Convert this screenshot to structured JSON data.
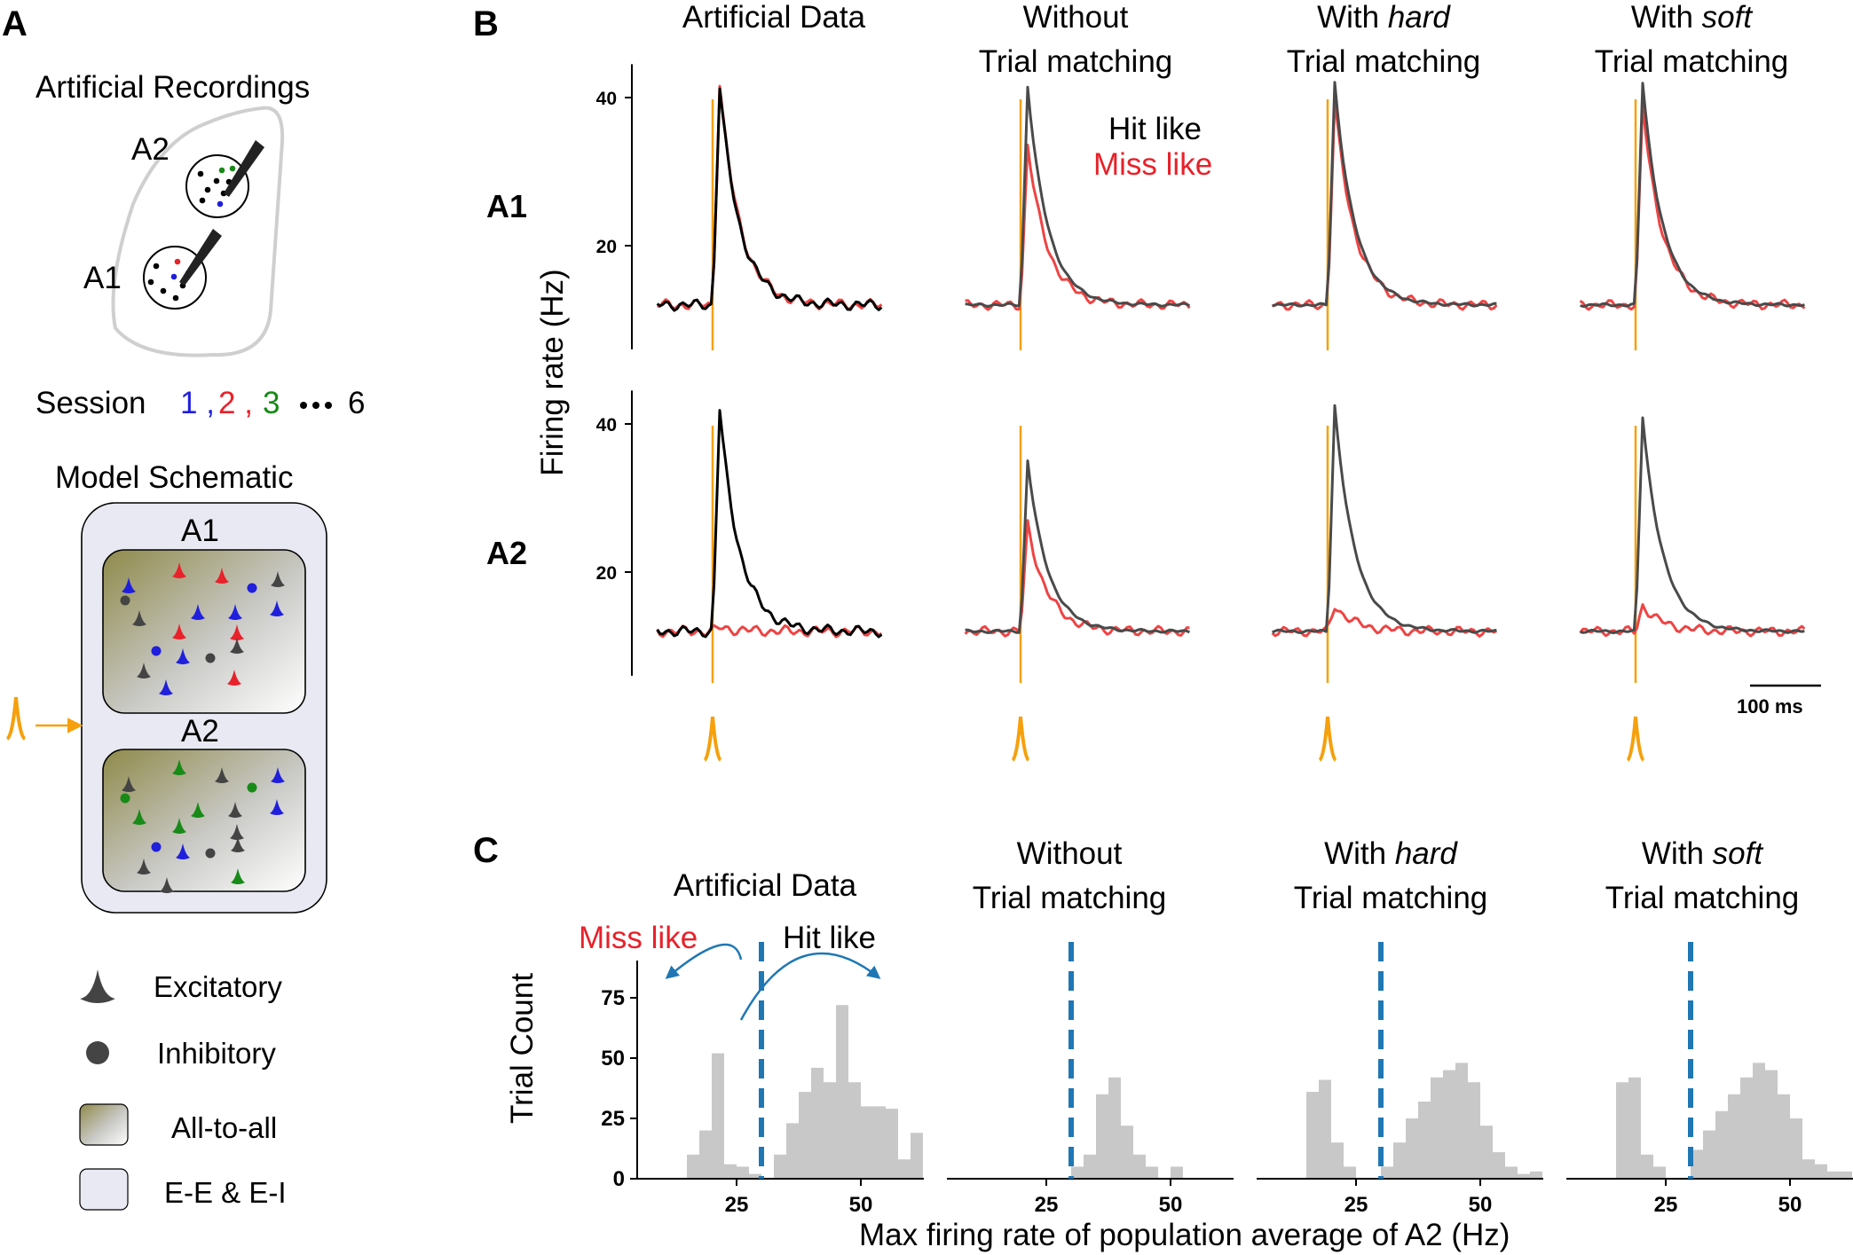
{
  "panel_a": {
    "letter": "A",
    "recordings_title": "Artificial Recordings",
    "area_a2": "A2",
    "area_a1": "A1",
    "session_prefix": "Session",
    "session_1": "1",
    "session_2": "2",
    "session_3": "3",
    "session_last": "6",
    "comma": ",",
    "model_title": "Model Schematic",
    "model_a1": "A1",
    "model_a2": "A2",
    "legend": {
      "excitatory": "Excitatory",
      "inhibitory": "Inhibitory",
      "all_to_all": "All-to-all",
      "ee_ei": "E-E & E-I"
    },
    "colors": {
      "session1": "#1f1fdc",
      "session2": "#e8212a",
      "session3": "#188a18",
      "neutral": "#444444",
      "stimulus": "#f5a00c"
    }
  },
  "panel_b": {
    "letter": "B",
    "col_titles": [
      {
        "line1": "Artificial Data",
        "line2": "",
        "italic": ""
      },
      {
        "line1": "Without",
        "line2": "Trial matching",
        "italic": ""
      },
      {
        "line1": "With ",
        "line2": "Trial matching",
        "italic": "hard"
      },
      {
        "line1": "With ",
        "line2": "Trial matching",
        "italic": "soft"
      }
    ],
    "row_a1": "A1",
    "row_a2": "A2",
    "ylabel": "Firing rate (Hz)",
    "yticks": [
      "40",
      "20"
    ],
    "legend_hit": "Hit like",
    "legend_miss": "Miss like",
    "scalebar": "100 ms"
  },
  "panel_c": {
    "letter": "C",
    "col_titles": [
      {
        "line1": "Artificial Data",
        "line2": "",
        "italic": ""
      },
      {
        "line1": "Without",
        "line2": "Trial matching",
        "italic": ""
      },
      {
        "line1": "With ",
        "line2": "Trial matching",
        "italic": "hard"
      },
      {
        "line1": "With ",
        "line2": "Trial matching",
        "italic": "soft"
      }
    ],
    "ylabel": "Trial Count",
    "xlabel": "Max firing rate of population average of A2 (Hz)",
    "yticks": [
      "75",
      "50",
      "25",
      "0"
    ],
    "xticks": [
      "25",
      "50"
    ],
    "miss_like": "Miss like",
    "hit_like": "Hit like"
  },
  "chart_data": [
    {
      "type": "line",
      "panel": "B",
      "ylabel": "Firing rate (Hz)",
      "ylim": [
        10,
        44
      ],
      "x_unit": "ms from stimulus",
      "scalebar_ms": 100,
      "grid": false,
      "legend": "top-right",
      "series_names": [
        "Hit like",
        "Miss like"
      ],
      "series_colors": {
        "Hit like": "#000000",
        "Miss like": "#e8212a"
      },
      "columns": [
        "Artificial Data",
        "Without Trial matching",
        "With hard Trial matching",
        "With soft Trial matching"
      ],
      "rows": [
        {
          "area": "A1",
          "columns": [
            {
              "hit_baseline": 12,
              "hit_peak": 41.5,
              "miss_baseline": 12,
              "miss_peak": 42,
              "miss_follows_hit": true
            },
            {
              "hit_baseline": 12,
              "hit_peak": 41.5,
              "miss_baseline": 12,
              "miss_peak": 33.5,
              "miss_follows_hit": false
            },
            {
              "hit_baseline": 12,
              "hit_peak": 42,
              "miss_baseline": 12,
              "miss_peak": 39.5,
              "miss_follows_hit": true
            },
            {
              "hit_baseline": 12,
              "hit_peak": 42,
              "miss_baseline": 12,
              "miss_peak": 39,
              "miss_follows_hit": true
            }
          ]
        },
        {
          "area": "A2",
          "columns": [
            {
              "hit_baseline": 12,
              "hit_peak": 42,
              "miss_baseline": 12,
              "miss_peak": 12.5,
              "miss_follows_hit": false
            },
            {
              "hit_baseline": 12,
              "hit_peak": 35,
              "miss_baseline": 12,
              "miss_peak": 26.5,
              "miss_follows_hit": false
            },
            {
              "hit_baseline": 12,
              "hit_peak": 42.5,
              "miss_baseline": 12,
              "miss_peak": 15.5,
              "miss_follows_hit": false
            },
            {
              "hit_baseline": 12,
              "hit_peak": 41,
              "miss_baseline": 12,
              "miss_peak": 15.5,
              "miss_follows_hit": false
            }
          ]
        }
      ]
    },
    {
      "type": "bar",
      "panel": "C",
      "xlabel": "Max firing rate of population average of A2 (Hz)",
      "ylabel": "Trial Count",
      "ylim": [
        0,
        95
      ],
      "xlim": [
        5,
        67
      ],
      "bin_width": 2.5,
      "grid": false,
      "threshold_line": 30,
      "histograms": [
        {
          "title": "Artificial Data",
          "bin_start": 15,
          "counts": [
            10,
            20,
            52,
            6,
            5,
            2,
            0,
            10,
            23,
            36,
            46,
            40,
            72,
            40,
            30,
            30,
            29,
            8,
            19
          ]
        },
        {
          "title": "Without Trial matching",
          "bin_start": 25,
          "counts": [
            0,
            0,
            5,
            10,
            35,
            42,
            22,
            10,
            5,
            0,
            5
          ]
        },
        {
          "title": "With hard Trial matching",
          "bin_start": 15,
          "counts": [
            36,
            41,
            15,
            5,
            0,
            0,
            5,
            15,
            25,
            32,
            42,
            45,
            48,
            40,
            22,
            11,
            5,
            2,
            3
          ]
        },
        {
          "title": "With soft Trial matching",
          "bin_start": 15,
          "counts": [
            40,
            42,
            10,
            5,
            0,
            0,
            12,
            20,
            28,
            35,
            42,
            48,
            45,
            35,
            25,
            8,
            6,
            3,
            3
          ]
        }
      ]
    }
  ]
}
